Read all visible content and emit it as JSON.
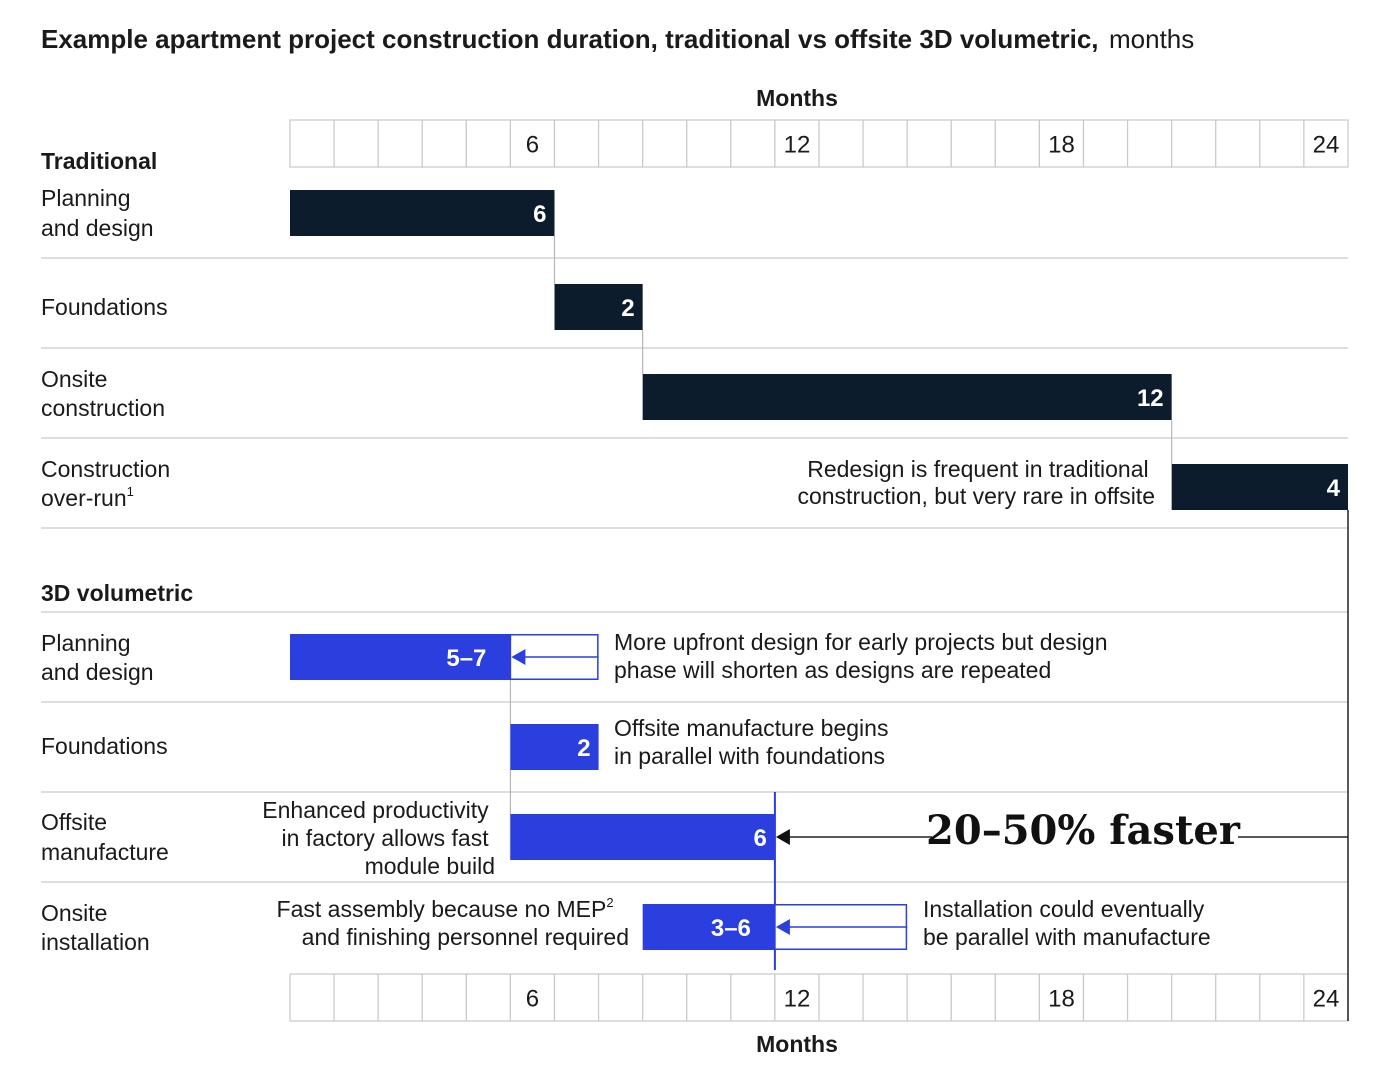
{
  "title": {
    "bold": "Example apartment project construction duration, traditional vs offsite 3D volumetric,",
    "unit": "months"
  },
  "colors": {
    "traditional": "#0c1c2c",
    "volumetric": "#2b3fde",
    "grid": "#c9c9c9",
    "text": "#1a1a1a"
  },
  "chart_data": {
    "type": "gantt",
    "axis_label_top": "Months",
    "axis_label_bottom": "Months",
    "xlim": [
      0,
      24
    ],
    "ticks": [
      6,
      12,
      18,
      24
    ],
    "sections": [
      {
        "name": "Traditional",
        "rows": [
          {
            "label": [
              "Planning",
              "and design"
            ],
            "start": 0,
            "end": 6,
            "value_label": "6"
          },
          {
            "label": [
              "Foundations"
            ],
            "start": 6,
            "end": 8,
            "value_label": "2"
          },
          {
            "label": [
              "Onsite",
              "construction"
            ],
            "start": 8,
            "end": 20,
            "value_label": "12"
          },
          {
            "label": [
              "Construction",
              "over-run"
            ],
            "sup": "1",
            "start": 20,
            "end": 24,
            "value_label": "4",
            "note": [
              "Redesign is frequent in traditional",
              "construction, but very rare in offsite"
            ]
          }
        ]
      },
      {
        "name": "3D volumetric",
        "rows": [
          {
            "label": [
              "Planning",
              "and design"
            ],
            "start": 0,
            "end": 5,
            "range_end": 7,
            "value_label": "5–7",
            "note": [
              "More upfront design for early projects but design",
              "phase will shorten as designs are repeated"
            ]
          },
          {
            "label": [
              "Foundations"
            ],
            "start": 5,
            "end": 7,
            "value_label": "2",
            "note": [
              "Offsite manufacture begins",
              "in parallel with foundations"
            ]
          },
          {
            "label": [
              "Offsite",
              "manufacture"
            ],
            "start": 5,
            "end": 11,
            "value_label": "6",
            "note": [
              "Enhanced productivity",
              "in factory allows fast",
              "module build"
            ]
          },
          {
            "label": [
              "Onsite",
              "installation"
            ],
            "start": 8,
            "end": 11,
            "range_end": 14,
            "value_label": "3–6",
            "note_left": [
              "Fast assembly because no MEP",
              "and finishing  personnel required"
            ],
            "note_left_sup": "2",
            "note": [
              "Installation could eventually",
              "be parallel with manufacture"
            ]
          }
        ]
      }
    ],
    "annotation": "20–50% faster"
  }
}
